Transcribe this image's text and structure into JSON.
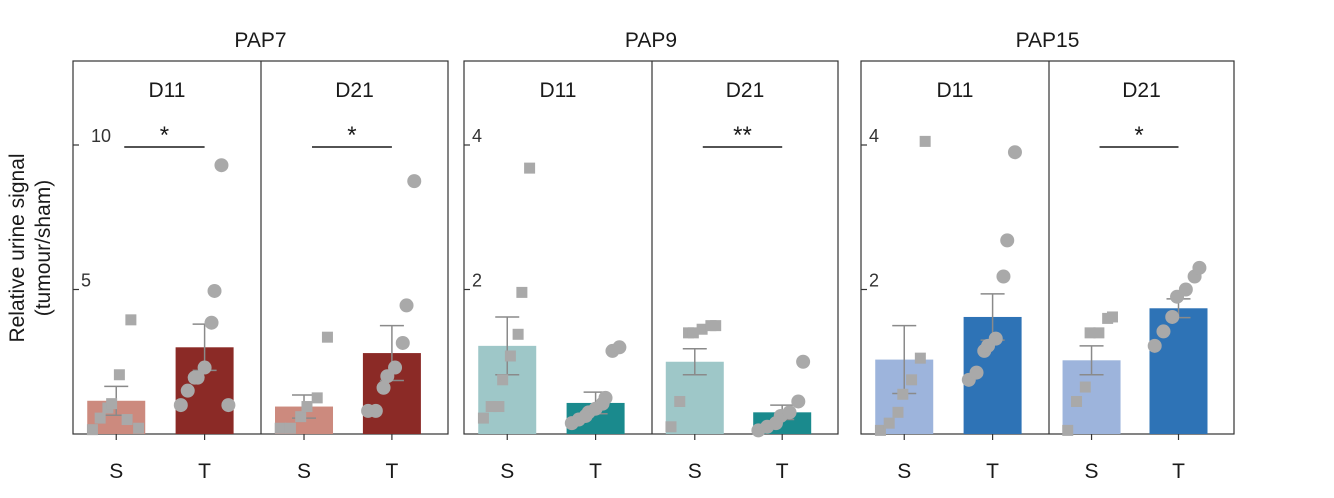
{
  "y_axis_label_lines": [
    "Relative urine signal",
    "(tumour/sham)"
  ],
  "chart_data": [
    {
      "type": "bar",
      "title": "PAP7",
      "ylim": [
        0,
        10
      ],
      "yticks": [
        5,
        10
      ],
      "colors": {
        "S": "#cc8a7e",
        "T": "#8b2a26"
      },
      "panels": [
        {
          "label": "D11",
          "categories": [
            "S",
            "T"
          ],
          "values": [
            1.15,
            3.0
          ],
          "errors": [
            0.5,
            0.8
          ],
          "points": [
            [
              0.15,
              0.55,
              0.9,
              1.05,
              2.05,
              0.5,
              3.95,
              0.2
            ],
            [
              1.0,
              1.5,
              1.95,
              1.95,
              2.3,
              3.85,
              4.95,
              9.3,
              1.0
            ]
          ],
          "significance": "*"
        },
        {
          "label": "D21",
          "categories": [
            "S",
            "T"
          ],
          "values": [
            0.95,
            2.8
          ],
          "errors": [
            0.4,
            0.95
          ],
          "points": [
            [
              0.2,
              0.2,
              0.6,
              0.95,
              1.25,
              3.35
            ],
            [
              0.8,
              0.8,
              1.6,
              2.0,
              2.3,
              3.15,
              4.45,
              8.75
            ]
          ],
          "significance": "*"
        }
      ]
    },
    {
      "type": "bar",
      "title": "PAP9",
      "ylim": [
        0,
        4
      ],
      "yticks": [
        2,
        4
      ],
      "colors": {
        "S": "#9ec7c8",
        "T": "#1a8a8d"
      },
      "panels": [
        {
          "label": "D11",
          "categories": [
            "S",
            "T"
          ],
          "values": [
            1.22,
            0.43
          ],
          "errors": [
            0.4,
            0.15
          ],
          "points": [
            [
              0.22,
              0.38,
              0.38,
              0.75,
              1.08,
              1.38,
              1.96,
              3.68
            ],
            [
              0.15,
              0.2,
              0.25,
              0.3,
              0.35,
              0.42,
              0.5,
              1.15,
              1.2
            ]
          ],
          "significance": ""
        },
        {
          "label": "D21",
          "categories": [
            "S",
            "T"
          ],
          "values": [
            1.0,
            0.3
          ],
          "errors": [
            0.18,
            0.1
          ],
          "points": [
            [
              0.1,
              0.45,
              1.4,
              1.4,
              1.45,
              1.5,
              1.5
            ],
            [
              0.05,
              0.1,
              0.15,
              0.25,
              0.3,
              0.45,
              1.0
            ]
          ],
          "significance": "**"
        }
      ]
    },
    {
      "type": "bar",
      "title": "PAP15",
      "ylim": [
        0,
        4
      ],
      "yticks": [
        2,
        4
      ],
      "colors": {
        "S": "#9db4dc",
        "T": "#2e73b6"
      },
      "panels": [
        {
          "label": "D11",
          "categories": [
            "S",
            "T"
          ],
          "values": [
            1.03,
            1.62
          ],
          "errors": [
            0.47,
            0.32
          ],
          "points": [
            [
              0.05,
              0.15,
              0.3,
              0.55,
              0.75,
              1.05,
              4.05
            ],
            [
              0.75,
              0.85,
              1.15,
              1.22,
              1.32,
              2.18,
              2.68,
              3.9
            ]
          ],
          "significance": ""
        },
        {
          "label": "D21",
          "categories": [
            "S",
            "T"
          ],
          "values": [
            1.02,
            1.74
          ],
          "errors": [
            0.2,
            0.13
          ],
          "points": [
            [
              0.05,
              0.45,
              0.65,
              1.4,
              1.4,
              1.6,
              1.62
            ],
            [
              1.22,
              1.42,
              1.62,
              1.9,
              2.0,
              2.18,
              2.3
            ]
          ],
          "significance": "*"
        }
      ]
    }
  ]
}
